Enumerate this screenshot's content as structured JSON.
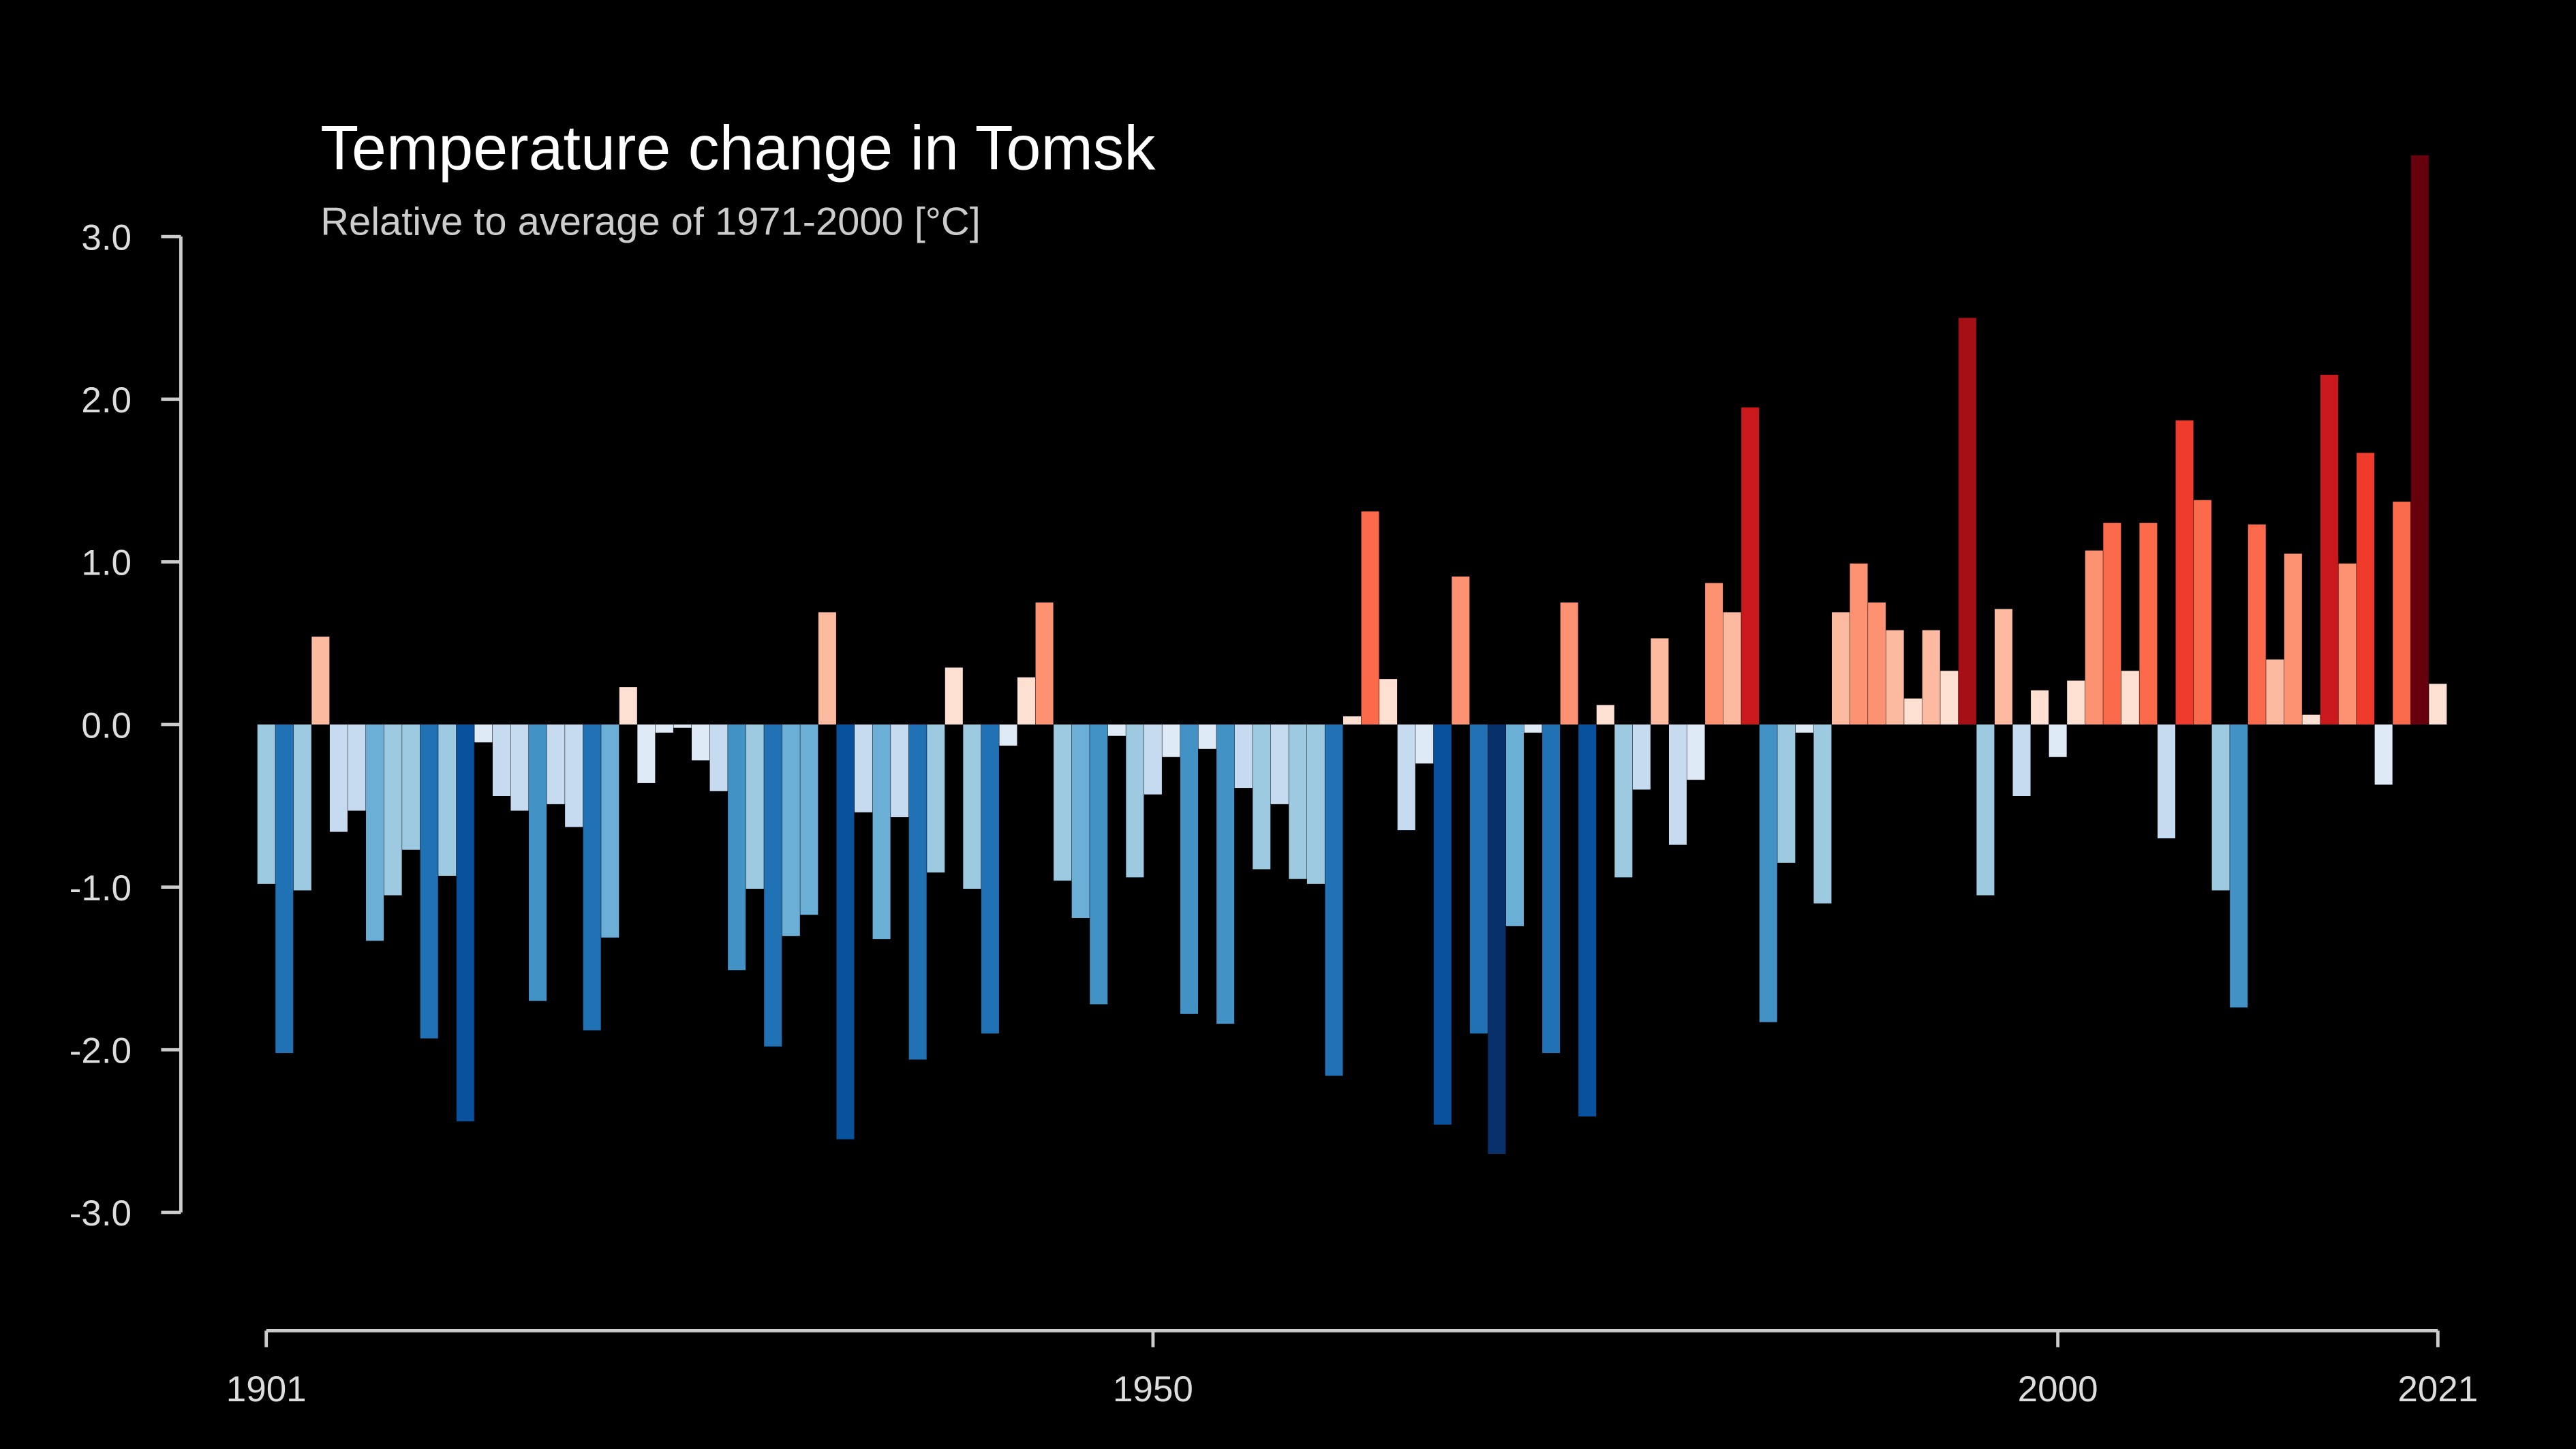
{
  "chart_data": {
    "type": "bar",
    "title": "Temperature change in Tomsk",
    "subtitle": "Relative to average of 1971-2000  [°C]",
    "x": [
      1901,
      1902,
      1903,
      1904,
      1905,
      1906,
      1907,
      1908,
      1909,
      1910,
      1911,
      1912,
      1913,
      1914,
      1915,
      1916,
      1917,
      1918,
      1919,
      1920,
      1921,
      1922,
      1923,
      1924,
      1925,
      1926,
      1927,
      1928,
      1929,
      1930,
      1931,
      1932,
      1933,
      1934,
      1935,
      1936,
      1937,
      1938,
      1939,
      1940,
      1941,
      1942,
      1943,
      1944,
      1945,
      1946,
      1947,
      1948,
      1949,
      1950,
      1951,
      1952,
      1953,
      1954,
      1955,
      1956,
      1957,
      1958,
      1959,
      1960,
      1961,
      1962,
      1963,
      1964,
      1965,
      1966,
      1967,
      1968,
      1969,
      1970,
      1971,
      1972,
      1973,
      1974,
      1975,
      1976,
      1977,
      1978,
      1979,
      1980,
      1981,
      1982,
      1983,
      1984,
      1985,
      1986,
      1987,
      1988,
      1989,
      1990,
      1991,
      1992,
      1993,
      1994,
      1995,
      1996,
      1997,
      1998,
      1999,
      2000,
      2001,
      2002,
      2003,
      2004,
      2005,
      2006,
      2007,
      2008,
      2009,
      2010,
      2011,
      2012,
      2013,
      2014,
      2015,
      2016,
      2017,
      2018,
      2019,
      2020,
      2021
    ],
    "values": [
      -0.98,
      -2.02,
      -1.02,
      0.54,
      -0.66,
      -0.53,
      -1.33,
      -1.05,
      -0.77,
      -1.93,
      -0.93,
      -2.44,
      -0.11,
      -0.44,
      -0.53,
      -1.7,
      -0.49,
      -0.63,
      -1.88,
      -1.31,
      0.23,
      -0.36,
      -0.05,
      -0.02,
      -0.22,
      -0.41,
      -1.51,
      -1.01,
      -1.98,
      -1.3,
      -1.17,
      0.69,
      -2.55,
      -0.54,
      -1.32,
      -0.57,
      -2.06,
      -0.91,
      0.35,
      -1.01,
      -1.9,
      -0.13,
      0.29,
      0.75,
      -0.96,
      -1.19,
      -1.72,
      -0.07,
      -0.94,
      -0.43,
      -0.2,
      -1.78,
      -0.15,
      -1.84,
      -0.39,
      -0.89,
      -0.49,
      -0.95,
      -0.98,
      -2.16,
      0.05,
      1.31,
      0.28,
      -0.65,
      -0.24,
      -2.46,
      0.91,
      -1.9,
      -2.64,
      -1.24,
      -0.05,
      -2.02,
      0.75,
      -2.41,
      0.12,
      -0.94,
      -0.4,
      0.53,
      -0.74,
      -0.34,
      0.87,
      0.69,
      1.95,
      -1.83,
      -0.85,
      -0.05,
      -1.1,
      0.69,
      0.99,
      0.75,
      0.58,
      0.16,
      0.58,
      0.33,
      2.5,
      -1.05,
      0.71,
      -0.44,
      0.21,
      -0.2,
      0.27,
      1.07,
      1.24,
      0.33,
      1.24,
      -0.7,
      1.87,
      1.38,
      -1.02,
      -1.74,
      1.23,
      0.4,
      1.05,
      0.06,
      2.15,
      0.99,
      1.67,
      -0.37,
      1.37,
      3.5,
      0.25
    ],
    "colors": [
      "#08306b",
      "#08519c",
      "#2171b5",
      "#4292c6",
      "#6baed6",
      "#9ecae1",
      "#c6dbef",
      "#deebf7",
      "#fee0d2",
      "#fcbba1",
      "#fc9272",
      "#fb6a4a",
      "#ef3b2c",
      "#cb181d",
      "#a50f15",
      "#67000d"
    ],
    "xlim": [
      1901,
      2021
    ],
    "xticks": [
      1901,
      1950,
      2000,
      2021
    ],
    "ylim": [
      -3,
      3
    ],
    "yticks": [
      {
        "value": -3,
        "label": "-3.0"
      },
      {
        "value": -2,
        "label": "-2.0"
      },
      {
        "value": -1,
        "label": "-1.0"
      },
      {
        "value": 0,
        "label": "0.0"
      },
      {
        "value": 1,
        "label": "1.0"
      },
      {
        "value": 2,
        "label": "2.0"
      },
      {
        "value": 3,
        "label": "3.0"
      }
    ]
  }
}
